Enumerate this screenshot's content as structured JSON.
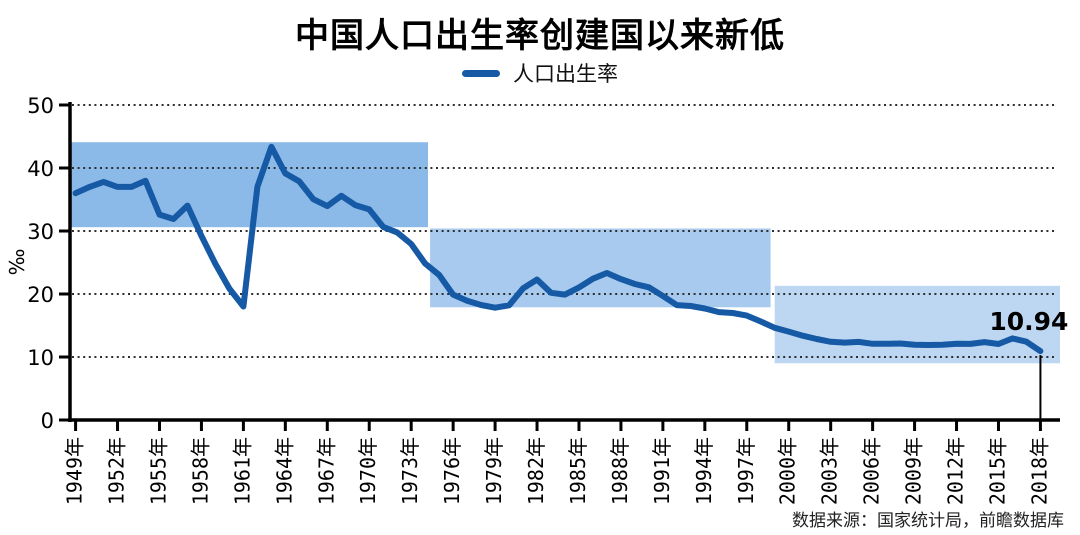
{
  "title": "中国人口出生率创建国以来新低",
  "legend": {
    "label": "人口出生率",
    "dash_color": "#1659A5"
  },
  "annotation": {
    "label": "10.94",
    "year": 2018,
    "value": 10.94
  },
  "source_note": "数据来源：国家统计局，前瞻数据库",
  "colors": {
    "line": "#1659A5",
    "axis": "#000000",
    "grid": "#2e2e2e",
    "band1": "#8CBAE8",
    "band2": "#A7CAEE",
    "band3": "#BDD7F2",
    "background": "#ffffff",
    "text": "#000000"
  },
  "chart_data": {
    "type": "line",
    "title": "中国人口出生率创建国以来新低",
    "xlabel": "",
    "ylabel": "‰",
    "ylim": [
      0,
      50
    ],
    "xlim": [
      1948.6,
      2019.4
    ],
    "yticks": [
      0,
      10,
      20,
      30,
      40,
      50
    ],
    "grid": "horizontal-dotted",
    "legend_position": "top-center",
    "xticks": [
      {
        "year": 1949,
        "label": "1949年"
      },
      {
        "year": 1952,
        "label": "1952年"
      },
      {
        "year": 1955,
        "label": "1955年"
      },
      {
        "year": 1958,
        "label": "1958年"
      },
      {
        "year": 1961,
        "label": "1961年"
      },
      {
        "year": 1964,
        "label": "1964年"
      },
      {
        "year": 1967,
        "label": "1967年"
      },
      {
        "year": 1970,
        "label": "1970年"
      },
      {
        "year": 1973,
        "label": "1973年"
      },
      {
        "year": 1976,
        "label": "1976年"
      },
      {
        "year": 1979,
        "label": "1979年"
      },
      {
        "year": 1982,
        "label": "1982年"
      },
      {
        "year": 1985,
        "label": "1985年"
      },
      {
        "year": 1988,
        "label": "1988年"
      },
      {
        "year": 1991,
        "label": "1991年"
      },
      {
        "year": 1994,
        "label": "1994年"
      },
      {
        "year": 1997,
        "label": "1997年"
      },
      {
        "year": 2000,
        "label": "2000年"
      },
      {
        "year": 2003,
        "label": "2003年"
      },
      {
        "year": 2006,
        "label": "2006年"
      },
      {
        "year": 2009,
        "label": "2009年"
      },
      {
        "year": 2012,
        "label": "2012年"
      },
      {
        "year": 2015,
        "label": "2015年"
      },
      {
        "year": 2018,
        "label": "2018年"
      }
    ],
    "x": [
      1949,
      1950,
      1951,
      1952,
      1953,
      1954,
      1955,
      1956,
      1957,
      1958,
      1959,
      1960,
      1961,
      1962,
      1963,
      1964,
      1965,
      1966,
      1967,
      1968,
      1969,
      1970,
      1971,
      1972,
      1973,
      1974,
      1975,
      1976,
      1977,
      1978,
      1979,
      1980,
      1981,
      1982,
      1983,
      1984,
      1985,
      1986,
      1987,
      1988,
      1989,
      1990,
      1991,
      1992,
      1993,
      1994,
      1995,
      1996,
      1997,
      1998,
      1999,
      2000,
      2001,
      2002,
      2003,
      2004,
      2005,
      2006,
      2007,
      2008,
      2009,
      2010,
      2011,
      2012,
      2013,
      2014,
      2015,
      2016,
      2017,
      2018
    ],
    "series": [
      {
        "name": "人口出生率",
        "color": "#1659A5",
        "values": [
          36.0,
          37.0,
          37.8,
          37.0,
          37.0,
          37.97,
          32.6,
          31.9,
          34.03,
          29.22,
          24.78,
          20.86,
          18.02,
          37.01,
          43.37,
          39.14,
          37.88,
          35.05,
          33.96,
          35.59,
          34.11,
          33.43,
          30.65,
          29.77,
          27.93,
          24.82,
          23.01,
          19.91,
          18.93,
          18.25,
          17.82,
          18.21,
          20.91,
          22.28,
          20.19,
          19.9,
          21.04,
          22.43,
          23.33,
          22.37,
          21.58,
          21.06,
          19.68,
          18.24,
          18.09,
          17.7,
          17.12,
          16.98,
          16.57,
          15.64,
          14.64,
          14.03,
          13.38,
          12.86,
          12.41,
          12.29,
          12.4,
          12.09,
          12.1,
          12.14,
          11.95,
          11.9,
          11.93,
          12.1,
          12.08,
          12.37,
          12.07,
          12.95,
          12.43,
          10.94
        ]
      }
    ],
    "bands": [
      {
        "name": "stage-1",
        "x0": 1948.6,
        "x1": 1974.2,
        "y0": 30.6,
        "y1": 44.1,
        "color": "#8CBAE8"
      },
      {
        "name": "stage-2",
        "x0": 1974.35,
        "x1": 1998.7,
        "y0": 17.9,
        "y1": 30.4,
        "color": "#A7CAEE"
      },
      {
        "name": "stage-3",
        "x0": 1999.0,
        "x1": 2019.4,
        "y0": 9.0,
        "y1": 21.3,
        "color": "#BDD7F2"
      }
    ]
  }
}
